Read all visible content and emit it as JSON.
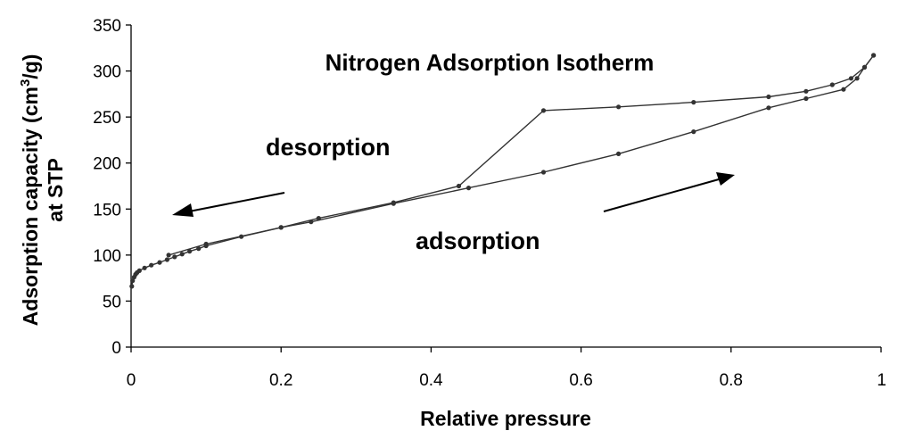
{
  "chart_data": {
    "type": "line",
    "title": "Nitrogen Adsorption Isotherm",
    "xlabel": "Relative pressure",
    "ylabel_line1_pre": "Adsorption capacity (cm",
    "ylabel_line1_sup": "3",
    "ylabel_line1_post": "/g)",
    "ylabel_line2": "at STP",
    "xlim": [
      0,
      1
    ],
    "ylim": [
      0,
      350
    ],
    "xticks": [
      "0",
      "0.2",
      "0.4",
      "0.6",
      "0.8",
      "1"
    ],
    "yticks": [
      "0",
      "50",
      "100",
      "150",
      "200",
      "250",
      "300",
      "350"
    ],
    "grid": false,
    "annotations": {
      "desorption": "desorption",
      "adsorption": "adsorption"
    },
    "series": [
      {
        "values_x": [
          0.001,
          0.002,
          0.004,
          0.006,
          0.008,
          0.011,
          0.018,
          0.027,
          0.038,
          0.048,
          0.058,
          0.068,
          0.078,
          0.09,
          0.1,
          0.147,
          0.2,
          0.24,
          0.35,
          0.45,
          0.55,
          0.65,
          0.75,
          0.85,
          0.9,
          0.95,
          0.968,
          0.978,
          0.99
        ],
        "values_y": [
          66,
          72,
          76,
          79,
          81,
          83,
          86,
          89,
          92,
          95,
          98,
          101,
          104,
          107,
          110,
          120,
          130,
          136,
          156,
          173,
          190,
          210,
          234,
          260,
          270,
          280,
          292,
          304,
          317
        ]
      },
      {
        "values_x": [
          0.99,
          0.978,
          0.96,
          0.935,
          0.9,
          0.85,
          0.75,
          0.65,
          0.55,
          0.437,
          0.35,
          0.25,
          0.2,
          0.1,
          0.05
        ],
        "values_y": [
          317,
          304,
          292,
          285,
          278,
          272,
          266,
          261,
          257,
          175,
          157,
          140,
          130,
          112,
          100
        ]
      }
    ]
  }
}
